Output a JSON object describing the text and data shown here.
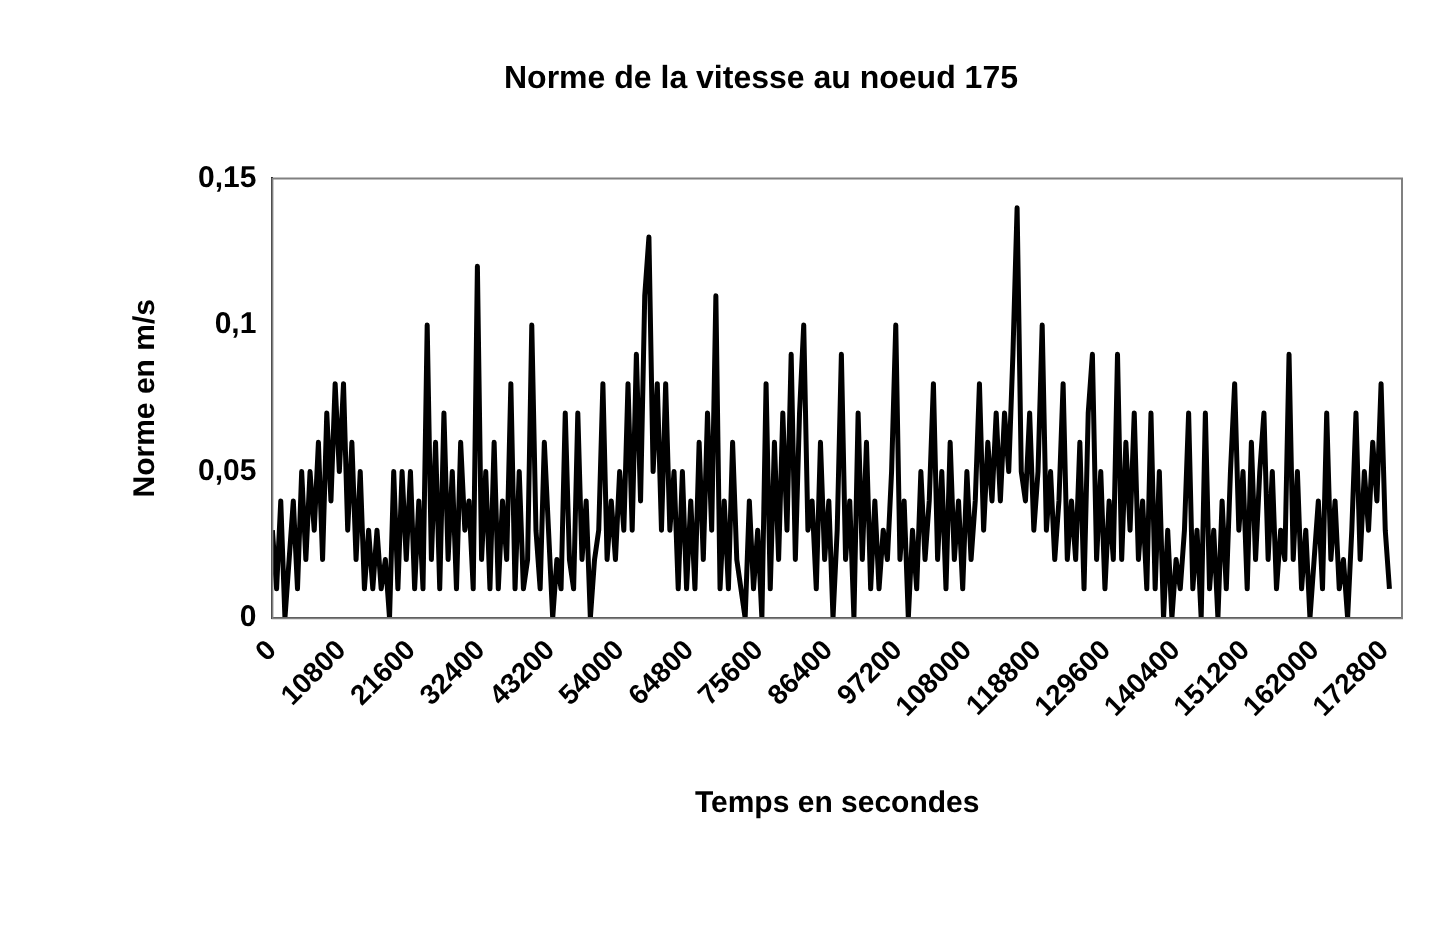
{
  "chart_data": {
    "type": "line",
    "title": "Norme de la vitesse au noeud 175",
    "xlabel": "Temps en secondes",
    "ylabel": "Norme en m/s",
    "xlim": [
      0,
      175500
    ],
    "xticks": [
      0,
      10800,
      21600,
      32400,
      43200,
      54000,
      64800,
      75600,
      86400,
      97200,
      108000,
      118800,
      129600,
      140400,
      151200,
      162000,
      172800
    ],
    "ylim": [
      0,
      0.15
    ],
    "yticks": [
      0,
      {
        "value": 0.05,
        "label": "0,05"
      },
      {
        "value": 0.1,
        "label": "0,1"
      },
      {
        "value": 0.15,
        "label": "0,15"
      }
    ],
    "grid": false,
    "legend": false,
    "marker": "none",
    "line_style": "solid",
    "series": [
      {
        "color": "#000000",
        "x": [
          0,
          650,
          1300,
          1950,
          2600,
          3250,
          3900,
          4550,
          5200,
          5850,
          6500,
          7150,
          7800,
          8450,
          9100,
          9750,
          10400,
          11050,
          11700,
          12350,
          13000,
          13650,
          14300,
          14950,
          15600,
          16250,
          16900,
          17550,
          18200,
          18850,
          19500,
          20150,
          20800,
          21450,
          22100,
          22750,
          23400,
          24050,
          24700,
          25350,
          26000,
          26650,
          27300,
          27950,
          28600,
          29250,
          29900,
          30550,
          31200,
          31850,
          32500,
          33150,
          33800,
          34450,
          35100,
          35750,
          36400,
          37050,
          37700,
          38350,
          39000,
          39650,
          40300,
          40950,
          41600,
          42250,
          42900,
          43550,
          44200,
          44850,
          45500,
          46150,
          46800,
          47450,
          48100,
          48750,
          49400,
          50050,
          50700,
          51350,
          52000,
          52650,
          53300,
          53950,
          54600,
          55250,
          55900,
          56550,
          57200,
          57850,
          58500,
          59150,
          59800,
          60450,
          61100,
          61750,
          62400,
          63050,
          63700,
          64350,
          65000,
          65650,
          66300,
          66950,
          67600,
          68250,
          68900,
          69550,
          70200,
          70850,
          71500,
          72150,
          72800,
          73450,
          74100,
          74750,
          75400,
          76050,
          76700,
          77350,
          78000,
          78650,
          79300,
          79950,
          80600,
          81250,
          81900,
          82550,
          83200,
          83850,
          84500,
          85150,
          85800,
          86450,
          87100,
          87750,
          88400,
          89050,
          89700,
          90350,
          91000,
          91650,
          92300,
          92950,
          93600,
          94250,
          94900,
          95550,
          96200,
          96850,
          97500,
          98150,
          98800,
          99450,
          100100,
          100750,
          101400,
          102050,
          102700,
          103350,
          104000,
          104650,
          105300,
          105950,
          106600,
          107250,
          107900,
          108550,
          109200,
          109850,
          110500,
          111150,
          111800,
          112450,
          113100,
          113750,
          114400,
          115050,
          115700,
          116350,
          117000,
          117650,
          118300,
          118950,
          119600,
          120250,
          120900,
          121550,
          122200,
          122850,
          123500,
          124150,
          124800,
          125450,
          126100,
          126750,
          127400,
          128050,
          128700,
          129350,
          130000,
          130650,
          131300,
          131950,
          132600,
          133250,
          133900,
          134550,
          135200,
          135850,
          136500,
          137150,
          137800,
          138450,
          139100,
          139750,
          140400,
          141050,
          141700,
          142350,
          143000,
          143650,
          144300,
          144950,
          145600,
          146250,
          146900,
          147550,
          148200,
          148850,
          149500,
          150150,
          150800,
          151450,
          152100,
          152750,
          153400,
          154050,
          154700,
          155350,
          156000,
          156650,
          157300,
          157950,
          158600,
          159250,
          159900,
          160550,
          161200,
          161850,
          162500,
          163150,
          163800,
          164450,
          165100,
          165750,
          166400,
          167050,
          167700,
          168350,
          169000,
          169650,
          170300,
          170950,
          171600,
          172250,
          172900,
          173550
        ],
        "values": [
          0.03,
          0.01,
          0.04,
          0,
          0.02,
          0.04,
          0.01,
          0.05,
          0.02,
          0.05,
          0.03,
          0.06,
          0.02,
          0.07,
          0.04,
          0.08,
          0.05,
          0.08,
          0.03,
          0.06,
          0.02,
          0.05,
          0.01,
          0.03,
          0.01,
          0.03,
          0.01,
          0.02,
          0,
          0.05,
          0.01,
          0.05,
          0.02,
          0.05,
          0.01,
          0.04,
          0.01,
          0.1,
          0.02,
          0.06,
          0.01,
          0.07,
          0.02,
          0.05,
          0.01,
          0.06,
          0.03,
          0.04,
          0.01,
          0.12,
          0.02,
          0.05,
          0.01,
          0.06,
          0.01,
          0.04,
          0.02,
          0.08,
          0.01,
          0.05,
          0.01,
          0.02,
          0.1,
          0.03,
          0.01,
          0.06,
          0.03,
          0,
          0.02,
          0.01,
          0.07,
          0.02,
          0.01,
          0.07,
          0.02,
          0.04,
          0,
          0.02,
          0.03,
          0.08,
          0.02,
          0.04,
          0.02,
          0.05,
          0.03,
          0.08,
          0.03,
          0.09,
          0.04,
          0.11,
          0.13,
          0.05,
          0.08,
          0.03,
          0.08,
          0.03,
          0.05,
          0.01,
          0.05,
          0.01,
          0.04,
          0.01,
          0.06,
          0.02,
          0.07,
          0.03,
          0.11,
          0.01,
          0.04,
          0.01,
          0.06,
          0.02,
          0.01,
          0,
          0.04,
          0.01,
          0.03,
          0,
          0.08,
          0.01,
          0.06,
          0.02,
          0.07,
          0.03,
          0.09,
          0.02,
          0.07,
          0.1,
          0.03,
          0.04,
          0.01,
          0.06,
          0.02,
          0.04,
          0,
          0.03,
          0.09,
          0.02,
          0.04,
          0,
          0.07,
          0.02,
          0.06,
          0.01,
          0.04,
          0.01,
          0.03,
          0.02,
          0.05,
          0.1,
          0.02,
          0.04,
          0,
          0.03,
          0.01,
          0.05,
          0.02,
          0.04,
          0.08,
          0.02,
          0.05,
          0.01,
          0.06,
          0.02,
          0.04,
          0.01,
          0.05,
          0.02,
          0.04,
          0.08,
          0.03,
          0.06,
          0.04,
          0.07,
          0.04,
          0.07,
          0.05,
          0.09,
          0.14,
          0.05,
          0.04,
          0.07,
          0.03,
          0.05,
          0.1,
          0.03,
          0.05,
          0.02,
          0.04,
          0.08,
          0.02,
          0.04,
          0.02,
          0.06,
          0.01,
          0.07,
          0.09,
          0.02,
          0.05,
          0.01,
          0.04,
          0.02,
          0.09,
          0.02,
          0.06,
          0.03,
          0.07,
          0.02,
          0.04,
          0.01,
          0.07,
          0.01,
          0.05,
          0,
          0.03,
          0,
          0.02,
          0.01,
          0.03,
          0.07,
          0.01,
          0.03,
          0,
          0.07,
          0.01,
          0.03,
          0,
          0.04,
          0.01,
          0.05,
          0.08,
          0.03,
          0.05,
          0.01,
          0.06,
          0.02,
          0.05,
          0.07,
          0.02,
          0.05,
          0.01,
          0.03,
          0.02,
          0.09,
          0.02,
          0.05,
          0.01,
          0.03,
          0,
          0.02,
          0.04,
          0.01,
          0.07,
          0.02,
          0.04,
          0.01,
          0.02,
          0,
          0.03,
          0.07,
          0.02,
          0.05,
          0.03,
          0.06,
          0.04,
          0.08,
          0.03,
          0.01
        ]
      }
    ]
  }
}
